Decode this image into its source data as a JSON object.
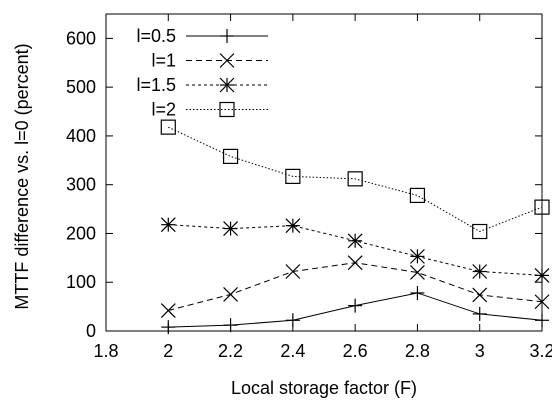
{
  "chart_data": {
    "type": "line",
    "xlabel": "Local storage factor (F)",
    "ylabel": "MTTF difference vs. l=0 (percent)",
    "xlim": [
      1.8,
      3.2
    ],
    "ylim": [
      0,
      650
    ],
    "xticks": [
      "1.8",
      "2",
      "2.2",
      "2.4",
      "2.6",
      "2.8",
      "3",
      "3.2"
    ],
    "yticks": [
      "0",
      "100",
      "200",
      "300",
      "400",
      "500",
      "600"
    ],
    "legend_position": "top-left",
    "grid": false,
    "x": [
      2.0,
      2.2,
      2.4,
      2.6,
      2.8,
      3.0,
      3.2
    ],
    "series": [
      {
        "name": "l=0.5",
        "marker": "plus",
        "dash": "solid",
        "values": [
          8,
          12,
          22,
          52,
          78,
          35,
          22
        ]
      },
      {
        "name": "l=1",
        "marker": "cross",
        "dash": "dashed",
        "values": [
          42,
          75,
          122,
          140,
          120,
          74,
          60
        ]
      },
      {
        "name": "l=1.5",
        "marker": "star",
        "dash": "dotted",
        "values": [
          218,
          210,
          216,
          185,
          153,
          122,
          114
        ]
      },
      {
        "name": "l=2",
        "marker": "square",
        "dash": "dotted-fine",
        "values": [
          418,
          358,
          317,
          312,
          278,
          204,
          254
        ]
      }
    ]
  }
}
